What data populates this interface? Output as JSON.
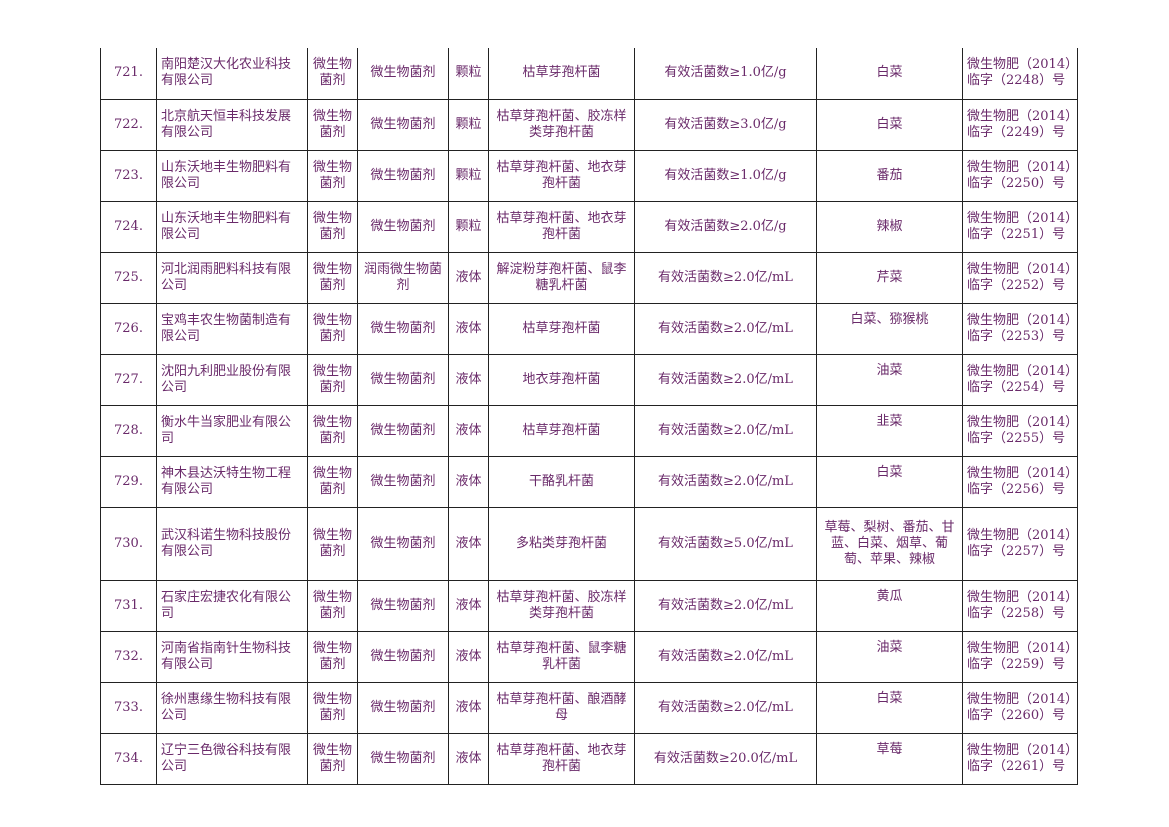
{
  "rows": [
    {
      "no": "721.",
      "company": "南阳楚汉大化农业科技有限公司",
      "category": "微生物菌剂",
      "product_name": "微生物菌剂",
      "form": "颗粒",
      "strain": "枯草芽孢杆菌",
      "indicator": "有效活菌数≥1.0亿/g",
      "crops": "白菜",
      "reg_no": "微生物肥（2014）临字（2248）号"
    },
    {
      "no": "722.",
      "company": "北京航天恒丰科技发展有限公司",
      "category": "微生物菌剂",
      "product_name": "微生物菌剂",
      "form": "颗粒",
      "strain": "枯草芽孢杆菌、胶冻样类芽孢杆菌",
      "indicator": "有效活菌数≥3.0亿/g",
      "crops": "白菜",
      "reg_no": "微生物肥（2014）临字（2249）号"
    },
    {
      "no": "723.",
      "company": "山东沃地丰生物肥料有限公司",
      "category": "微生物菌剂",
      "product_name": "微生物菌剂",
      "form": "颗粒",
      "strain": "枯草芽孢杆菌、地衣芽孢杆菌",
      "indicator": "有效活菌数≥1.0亿/g",
      "crops": "番茄",
      "reg_no": "微生物肥（2014）临字（2250）号"
    },
    {
      "no": "724.",
      "company": "山东沃地丰生物肥料有限公司",
      "category": "微生物菌剂",
      "product_name": "微生物菌剂",
      "form": "颗粒",
      "strain": "枯草芽孢杆菌、地衣芽孢杆菌",
      "indicator": "有效活菌数≥2.0亿/g",
      "crops": "辣椒",
      "reg_no": "微生物肥（2014）临字（2251）号"
    },
    {
      "no": "725.",
      "company": "河北润雨肥料科技有限公司",
      "category": "微生物菌剂",
      "product_name": "润雨微生物菌剂",
      "form": "液体",
      "strain": "解淀粉芽孢杆菌、鼠李糖乳杆菌",
      "indicator": "有效活菌数≥2.0亿/mL",
      "crops": "芹菜",
      "reg_no": "微生物肥（2014）临字（2252）号"
    },
    {
      "no": "726.",
      "company": "宝鸡丰农生物菌制造有限公司",
      "category": "微生物菌剂",
      "product_name": "微生物菌剂",
      "form": "液体",
      "strain": "枯草芽孢杆菌",
      "indicator": "有效活菌数≥2.0亿/mL",
      "crops": "白菜、猕猴桃",
      "reg_no": "微生物肥（2014）临字（2253）号"
    },
    {
      "no": "727.",
      "company": "沈阳九利肥业股份有限公司",
      "category": "微生物菌剂",
      "product_name": "微生物菌剂",
      "form": "液体",
      "strain": "地衣芽孢杆菌",
      "indicator": "有效活菌数≥2.0亿/mL",
      "crops": "油菜",
      "reg_no": "微生物肥（2014）临字（2254）号"
    },
    {
      "no": "728.",
      "company": "衡水牛当家肥业有限公司",
      "category": "微生物菌剂",
      "product_name": "微生物菌剂",
      "form": "液体",
      "strain": "枯草芽孢杆菌",
      "indicator": "有效活菌数≥2.0亿/mL",
      "crops": "韭菜",
      "reg_no": "微生物肥（2014）临字（2255）号"
    },
    {
      "no": "729.",
      "company": "神木县达沃特生物工程有限公司",
      "category": "微生物菌剂",
      "product_name": "微生物菌剂",
      "form": "液体",
      "strain": "干酪乳杆菌",
      "indicator": "有效活菌数≥2.0亿/mL",
      "crops": "白菜",
      "reg_no": "微生物肥（2014）临字（2256）号"
    },
    {
      "no": "730.",
      "company": "武汉科诺生物科技股份有限公司",
      "category": "微生物菌剂",
      "product_name": "微生物菌剂",
      "form": "液体",
      "strain": "多粘类芽孢杆菌",
      "indicator": "有效活菌数≥5.0亿/mL",
      "crops": "草莓、梨树、番茄、甘蓝、白菜、烟草、葡萄、苹果、辣椒",
      "reg_no": "微生物肥（2014）临字（2257）号"
    },
    {
      "no": "731.",
      "company": "石家庄宏捷农化有限公司",
      "category": "微生物菌剂",
      "product_name": "微生物菌剂",
      "form": "液体",
      "strain": "枯草芽孢杆菌、胶冻样类芽孢杆菌",
      "indicator": "有效活菌数≥2.0亿/mL",
      "crops": "黄瓜",
      "reg_no": "微生物肥（2014）临字（2258）号"
    },
    {
      "no": "732.",
      "company": "河南省指南针生物科技有限公司",
      "category": "微生物菌剂",
      "product_name": "微生物菌剂",
      "form": "液体",
      "strain": "枯草芽孢杆菌、鼠李糖乳杆菌",
      "indicator": "有效活菌数≥2.0亿/mL",
      "crops": "油菜",
      "reg_no": "微生物肥（2014）临字（2259）号"
    },
    {
      "no": "733.",
      "company": "徐州惠缘生物科技有限公司",
      "category": "微生物菌剂",
      "product_name": "微生物菌剂",
      "form": "液体",
      "strain": "枯草芽孢杆菌、酿酒酵母",
      "indicator": "有效活菌数≥2.0亿/mL",
      "crops": "白菜",
      "reg_no": "微生物肥（2014）临字（2260）号"
    },
    {
      "no": "734.",
      "company": "辽宁三色微谷科技有限公司",
      "category": "微生物菌剂",
      "product_name": "微生物菌剂",
      "form": "液体",
      "strain": "枯草芽孢杆菌、地衣芽孢杆菌",
      "indicator": "有效活菌数≥20.0亿/mL",
      "crops": "草莓",
      "reg_no": "微生物肥（2014）临字（2261）号"
    }
  ]
}
